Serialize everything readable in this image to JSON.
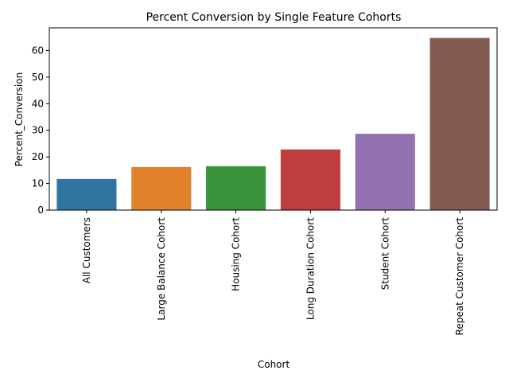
{
  "chart_data": {
    "type": "bar",
    "title": "Percent Conversion by Single Feature Cohorts",
    "xlabel": "Cohort",
    "ylabel": "Percent_Conversion",
    "ylim": [
      0,
      68.5
    ],
    "yticks": [
      0,
      10,
      20,
      30,
      40,
      50,
      60
    ],
    "categories": [
      "All Customers",
      "Large Balance Cohort",
      "Housing Cohort",
      "Long Duration Cohort",
      "Student Cohort",
      "Repeat Customer Cohort"
    ],
    "values": [
      11.7,
      16.2,
      16.5,
      22.8,
      28.7,
      64.7
    ],
    "colors": [
      "#3274a1",
      "#e1812c",
      "#3a923a",
      "#c03d3e",
      "#9372b2",
      "#845b53"
    ]
  }
}
